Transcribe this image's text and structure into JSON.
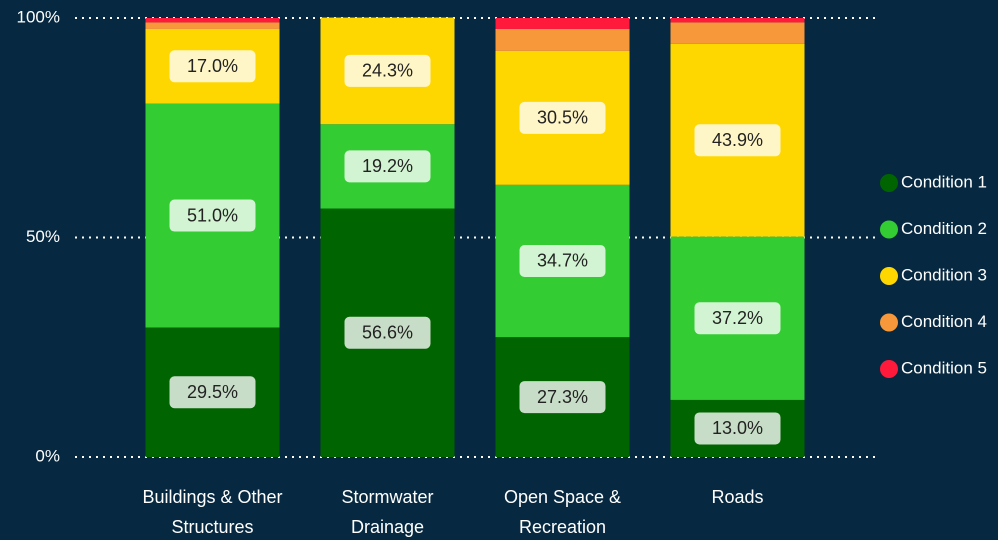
{
  "chart_data": {
    "type": "stacked_bar_100",
    "categories": [
      "Buildings & Other Structures",
      "Stormwater Drainage",
      "Open Space & Recreation",
      "Roads"
    ],
    "series": [
      {
        "name": "Condition 1",
        "color": "#006400",
        "values": [
          29.5,
          56.6,
          27.3,
          13.0
        ],
        "value_labels": [
          "29.5%",
          "56.6%",
          "27.3%",
          "13.0%"
        ]
      },
      {
        "name": "Condition 2",
        "color": "#33cc33",
        "values": [
          51.0,
          19.2,
          34.7,
          37.2
        ],
        "value_labels": [
          "51.0%",
          "19.2%",
          "34.7%",
          "37.2%"
        ]
      },
      {
        "name": "Condition 3",
        "color": "#ffd700",
        "values": [
          17.0,
          24.3,
          30.5,
          43.9
        ],
        "value_labels": [
          "17.0%",
          "24.3%",
          "30.5%",
          "43.9%"
        ]
      },
      {
        "name": "Condition 4",
        "color": "#f7993a",
        "values": [
          1.5,
          0,
          5.0,
          4.9
        ]
      },
      {
        "name": "Condition 5",
        "color": "#ff1a3c",
        "values": [
          1.0,
          0,
          2.5,
          1.0
        ]
      }
    ],
    "ylim": [
      0,
      100
    ],
    "yticks": [
      {
        "value": 0,
        "label": "0%"
      },
      {
        "value": 50,
        "label": "50%"
      },
      {
        "value": 100,
        "label": "100%"
      }
    ],
    "grid": true,
    "legend": "right"
  }
}
